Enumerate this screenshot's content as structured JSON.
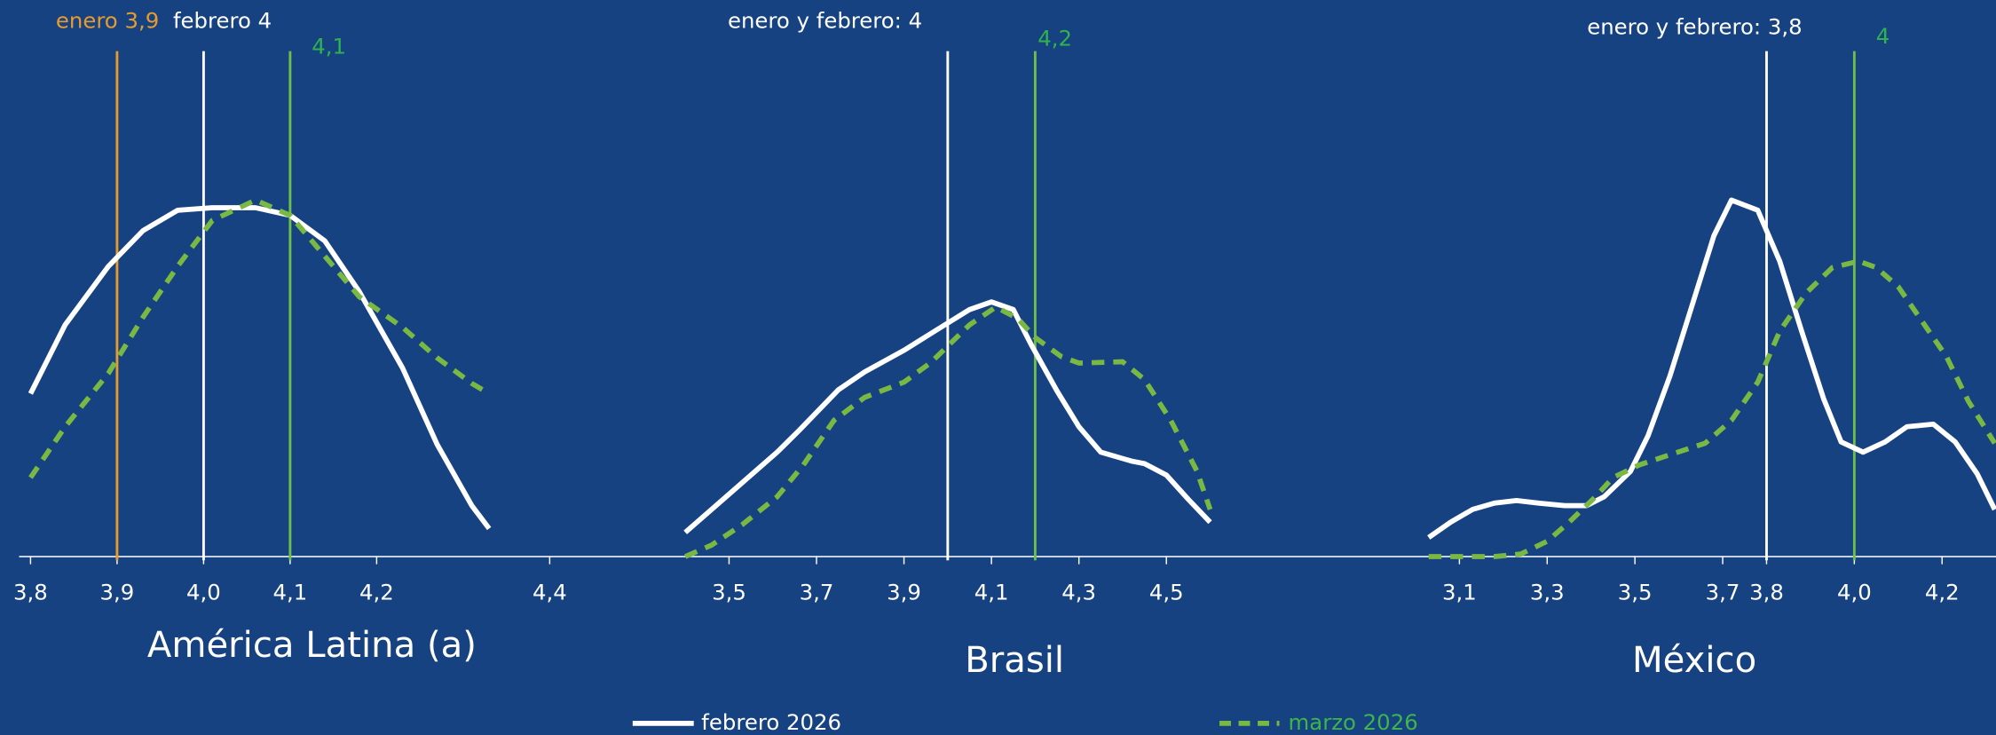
{
  "chart_data": [
    {
      "type": "line",
      "title": "América Latina (a)",
      "xlim": [
        3.78,
        4.49
      ],
      "ylim": [
        0,
        100
      ],
      "xticks": [
        {
          "value": 3.8,
          "label": "3,8"
        },
        {
          "value": 3.9,
          "label": "3,9"
        },
        {
          "value": 4.0,
          "label": "4,0"
        },
        {
          "value": 4.1,
          "label": "4,1"
        },
        {
          "value": 4.2,
          "label": "4,2"
        },
        {
          "value": 4.4,
          "label": "4,4"
        }
      ],
      "series": [
        {
          "name": "febrero 2026",
          "color": "#ffffff",
          "line_style": "solid",
          "x": [
            3.8,
            3.84,
            3.89,
            3.93,
            3.97,
            4.01,
            4.06,
            4.1,
            4.14,
            4.18,
            4.23,
            4.27,
            4.31,
            4.33
          ],
          "values": [
            32,
            45.5,
            57,
            64,
            68,
            68.5,
            68.5,
            67,
            62,
            52,
            37,
            22,
            10,
            5.5
          ]
        },
        {
          "name": "marzo 2026",
          "color": "#79b843",
          "line_style": "dashed",
          "x": [
            3.8,
            3.84,
            3.89,
            3.93,
            3.97,
            4.01,
            4.06,
            4.1,
            4.14,
            4.18,
            4.23,
            4.27,
            4.31,
            4.33
          ],
          "values": [
            15.5,
            25.5,
            36,
            47,
            57,
            66,
            70,
            67,
            59,
            51,
            45,
            39,
            34,
            32
          ]
        }
      ],
      "reference_lines": [
        {
          "label": "enero 3,9",
          "value": 3.9,
          "color": "#e59b30"
        },
        {
          "label": "febrero  4",
          "value": 4.0,
          "color": "#ffffff"
        },
        {
          "label": "4,1",
          "value": 4.1,
          "color": "#6ebe4a"
        }
      ]
    },
    {
      "type": "line",
      "title": "Brasil",
      "xlim": [
        3.3,
        4.7
      ],
      "ylim": [
        0,
        100
      ],
      "xticks": [
        {
          "value": 3.5,
          "label": "3,5"
        },
        {
          "value": 3.7,
          "label": "3,7"
        },
        {
          "value": 3.9,
          "label": "3,9"
        },
        {
          "value": 4.1,
          "label": "4,1"
        },
        {
          "value": 4.3,
          "label": "4,3"
        },
        {
          "value": 4.5,
          "label": "4,5"
        }
      ],
      "series": [
        {
          "color": "#ffffff",
          "line_style": "solid",
          "x": [
            3.4,
            3.51,
            3.61,
            3.66,
            3.75,
            3.81,
            3.9,
            3.97,
            4.05,
            4.1,
            4.15,
            4.19,
            4.25,
            4.3,
            4.35,
            4.42,
            4.45,
            4.5,
            4.55,
            4.6
          ],
          "values": [
            4.75,
            13,
            20.5,
            24.75,
            32.75,
            36.25,
            40.5,
            44.25,
            48.5,
            50,
            48.5,
            41.75,
            32.5,
            25.5,
            20.5,
            18.75,
            18.25,
            16,
            11.25,
            6.75
          ]
        },
        {
          "color": "#79b843",
          "line_style": "dashed",
          "x": [
            3.4,
            3.46,
            3.53,
            3.61,
            3.67,
            3.74,
            3.81,
            3.9,
            3.96,
            4.05,
            4.11,
            4.16,
            4.2,
            4.26,
            4.3,
            4.4,
            4.45,
            4.51,
            4.57,
            4.6
          ],
          "values": [
            0,
            2.25,
            6.25,
            11.75,
            18,
            26.75,
            31.25,
            34.25,
            38,
            45.5,
            49,
            46.75,
            43,
            39.25,
            38,
            38.25,
            34.75,
            26.75,
            16.75,
            9.25
          ]
        }
      ],
      "reference_lines": [
        {
          "label": "enero y febrero: 4",
          "value": 4.0,
          "color": "#ffffff"
        },
        {
          "label": "4,2",
          "value": 4.2,
          "color": "#6ebe4a"
        }
      ]
    },
    {
      "type": "line",
      "title": "México",
      "xlim": [
        3.0,
        4.32
      ],
      "ylim": [
        0,
        100
      ],
      "xticks": [
        {
          "value": 3.1,
          "label": "3,1"
        },
        {
          "value": 3.3,
          "label": "3,3"
        },
        {
          "value": 3.5,
          "label": "3,5"
        },
        {
          "value": 3.7,
          "label": "3,7"
        },
        {
          "value": 3.8,
          "label": "3,8"
        },
        {
          "value": 4.0,
          "label": "4,0"
        },
        {
          "value": 4.2,
          "label": "4,2"
        }
      ],
      "series": [
        {
          "color": "#ffffff",
          "line_style": "solid",
          "x": [
            3.03,
            3.08,
            3.13,
            3.18,
            3.23,
            3.28,
            3.34,
            3.39,
            3.43,
            3.49,
            3.53,
            3.58,
            3.63,
            3.68,
            3.72,
            3.78,
            3.83,
            3.88,
            3.93,
            3.97,
            4.02,
            4.07,
            4.12,
            4.18,
            4.23,
            4.28,
            4.32
          ],
          "values": [
            3.75,
            6.75,
            9.25,
            10.5,
            11,
            10.5,
            10,
            10,
            11.75,
            16.75,
            23.75,
            35.5,
            49.25,
            63,
            70,
            68,
            58,
            44.25,
            31,
            22.5,
            20.5,
            22.5,
            25.5,
            26,
            22.5,
            16.25,
            9.25
          ]
        },
        {
          "color": "#79b843",
          "line_style": "dashed",
          "x": [
            3.03,
            3.11,
            3.18,
            3.24,
            3.3,
            3.35,
            3.41,
            3.45,
            3.51,
            3.58,
            3.66,
            3.72,
            3.78,
            3.83,
            3.89,
            3.95,
            4.01,
            4.05,
            4.1,
            4.15,
            4.21,
            4.26,
            4.32
          ],
          "values": [
            0,
            0,
            0,
            0.5,
            3,
            6.75,
            11.75,
            15.5,
            18,
            20,
            22.25,
            26.75,
            34.25,
            44.25,
            51.75,
            56.75,
            58,
            56.75,
            53,
            46.75,
            39.25,
            30.5,
            22.25
          ]
        }
      ],
      "reference_lines": [
        {
          "label": "enero y febrero: 3,8",
          "value": 3.8,
          "color": "#ffffff"
        },
        {
          "label": "4",
          "value": 4.0,
          "color": "#6ebe4a"
        }
      ]
    }
  ]
}
